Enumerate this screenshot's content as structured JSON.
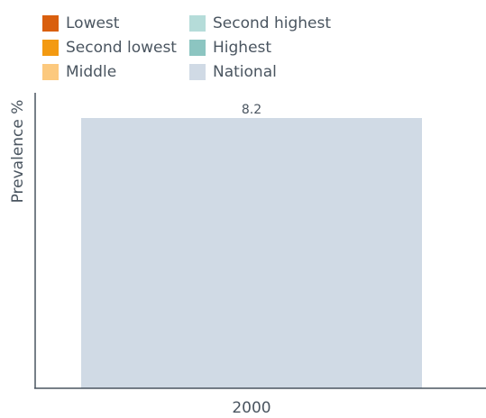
{
  "legend": [
    {
      "label": "Lowest",
      "color": "#d95f0e",
      "icon": "square-swatch"
    },
    {
      "label": "Second highest",
      "color": "#b5dcd9",
      "icon": "square-swatch"
    },
    {
      "label": "Second lowest",
      "color": "#f39a12",
      "icon": "square-swatch"
    },
    {
      "label": "Highest",
      "color": "#8cc5c1",
      "icon": "square-swatch"
    },
    {
      "label": "Middle",
      "color": "#fcc97e",
      "icon": "square-swatch"
    },
    {
      "label": "National",
      "color": "#d0dae5",
      "icon": "square-swatch"
    }
  ],
  "chart_data": {
    "type": "bar",
    "categories": [
      "2000"
    ],
    "series": [
      {
        "name": "National",
        "values": [
          8.2
        ],
        "color": "#d0dae5"
      }
    ],
    "data_labels": [
      "8.2"
    ],
    "xlabel": "",
    "ylabel": "Prevalence %",
    "ylim": [
      0,
      8.2
    ],
    "grid": false,
    "legend_position": "top-left",
    "axis_color": "#4a5560"
  }
}
